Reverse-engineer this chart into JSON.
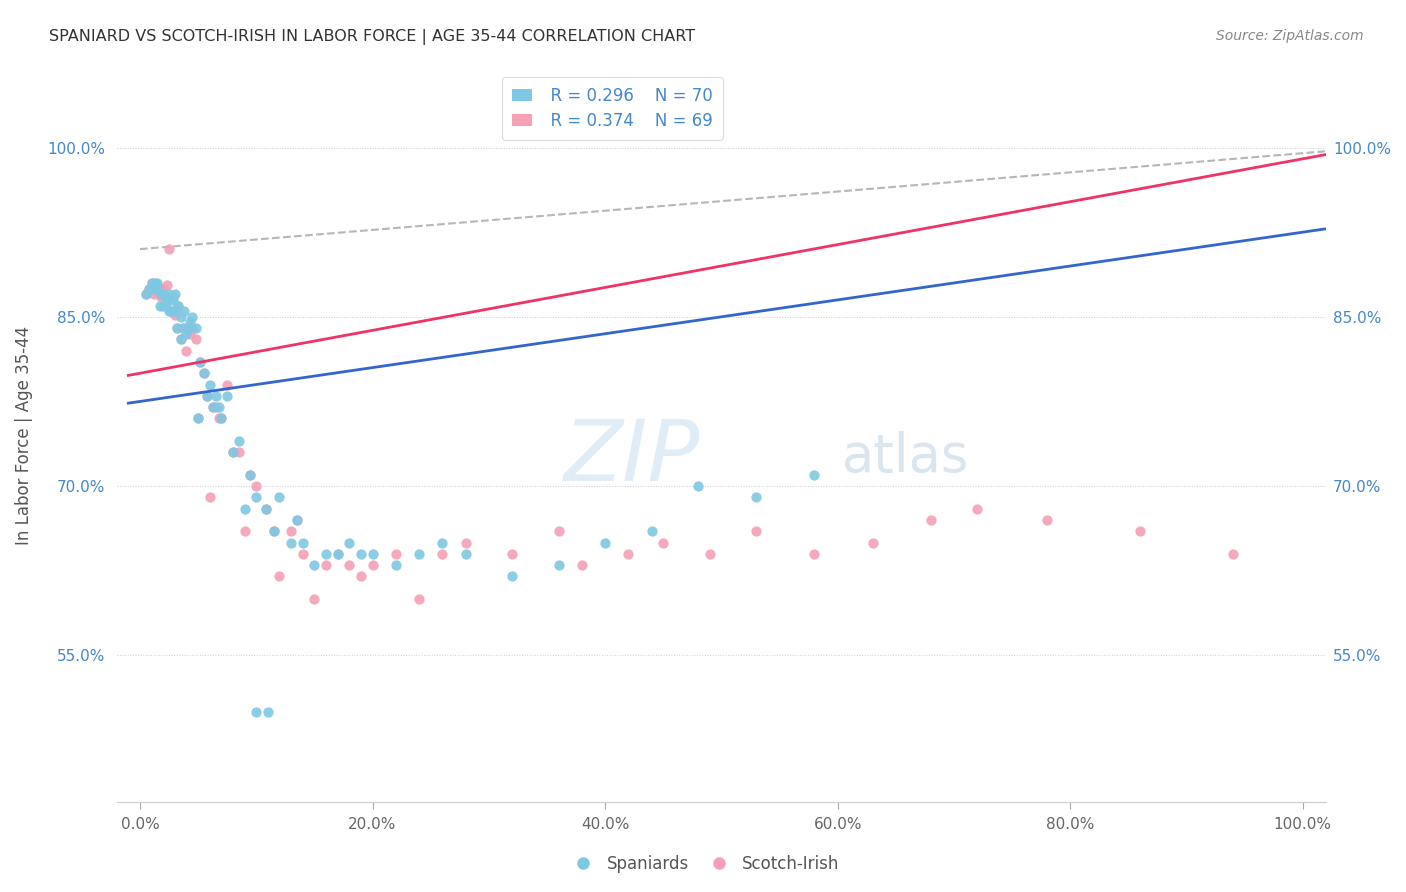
{
  "title": "SPANIARD VS SCOTCH-IRISH IN LABOR FORCE | AGE 35-44 CORRELATION CHART",
  "source": "Source: ZipAtlas.com",
  "ylabel": "In Labor Force | Age 35-44",
  "watermark": "ZIPatlas",
  "legend_blue_r": "R = 0.296",
  "legend_blue_n": "N = 70",
  "legend_pink_r": "R = 0.374",
  "legend_pink_n": "N = 69",
  "blue_color": "#7ec8e3",
  "pink_color": "#f4a0b5",
  "trend_blue": "#3366cc",
  "trend_pink": "#ee3366",
  "trend_dash_color": "#aaaaaa",
  "ytick_color": "#4488cc",
  "xtick_color": "#666666",
  "blue_x": [
    0.005,
    0.008,
    0.01,
    0.012,
    0.013,
    0.015,
    0.015,
    0.017,
    0.018,
    0.02,
    0.02,
    0.022,
    0.023,
    0.025,
    0.025,
    0.027,
    0.028,
    0.03,
    0.03,
    0.032,
    0.033,
    0.035,
    0.035,
    0.037,
    0.038,
    0.04,
    0.042,
    0.043,
    0.045,
    0.048,
    0.05,
    0.052,
    0.055,
    0.058,
    0.06,
    0.063,
    0.065,
    0.068,
    0.07,
    0.075,
    0.08,
    0.085,
    0.09,
    0.095,
    0.1,
    0.108,
    0.115,
    0.12,
    0.13,
    0.135,
    0.14,
    0.15,
    0.16,
    0.17,
    0.18,
    0.19,
    0.2,
    0.22,
    0.24,
    0.26,
    0.28,
    0.32,
    0.36,
    0.4,
    0.44,
    0.48,
    0.53,
    0.58,
    0.1,
    0.11
  ],
  "blue_y": [
    0.87,
    0.875,
    0.88,
    0.875,
    0.88,
    0.875,
    0.88,
    0.86,
    0.87,
    0.86,
    0.87,
    0.86,
    0.865,
    0.855,
    0.87,
    0.855,
    0.865,
    0.855,
    0.87,
    0.84,
    0.86,
    0.83,
    0.85,
    0.84,
    0.855,
    0.835,
    0.84,
    0.845,
    0.85,
    0.84,
    0.76,
    0.81,
    0.8,
    0.78,
    0.79,
    0.77,
    0.78,
    0.77,
    0.76,
    0.78,
    0.73,
    0.74,
    0.68,
    0.71,
    0.69,
    0.68,
    0.66,
    0.69,
    0.65,
    0.67,
    0.65,
    0.63,
    0.64,
    0.64,
    0.65,
    0.64,
    0.64,
    0.63,
    0.64,
    0.65,
    0.64,
    0.62,
    0.63,
    0.65,
    0.66,
    0.7,
    0.69,
    0.71,
    0.5,
    0.5
  ],
  "pink_x": [
    0.005,
    0.008,
    0.01,
    0.012,
    0.013,
    0.015,
    0.017,
    0.018,
    0.02,
    0.022,
    0.023,
    0.025,
    0.027,
    0.028,
    0.03,
    0.032,
    0.033,
    0.035,
    0.037,
    0.04,
    0.042,
    0.043,
    0.045,
    0.048,
    0.05,
    0.052,
    0.055,
    0.058,
    0.06,
    0.063,
    0.065,
    0.068,
    0.07,
    0.075,
    0.08,
    0.085,
    0.09,
    0.095,
    0.1,
    0.108,
    0.115,
    0.12,
    0.13,
    0.135,
    0.14,
    0.15,
    0.16,
    0.17,
    0.18,
    0.19,
    0.2,
    0.22,
    0.24,
    0.26,
    0.28,
    0.32,
    0.36,
    0.38,
    0.42,
    0.45,
    0.49,
    0.53,
    0.58,
    0.63,
    0.68,
    0.72,
    0.78,
    0.86,
    0.94
  ],
  "pink_y": [
    0.87,
    0.875,
    0.88,
    0.87,
    0.878,
    0.872,
    0.875,
    0.868,
    0.875,
    0.868,
    0.878,
    0.91,
    0.855,
    0.868,
    0.852,
    0.84,
    0.86,
    0.83,
    0.84,
    0.82,
    0.84,
    0.835,
    0.84,
    0.83,
    0.76,
    0.81,
    0.8,
    0.78,
    0.69,
    0.77,
    0.77,
    0.76,
    0.76,
    0.79,
    0.73,
    0.73,
    0.66,
    0.71,
    0.7,
    0.68,
    0.66,
    0.62,
    0.66,
    0.67,
    0.64,
    0.6,
    0.63,
    0.64,
    0.63,
    0.62,
    0.63,
    0.64,
    0.6,
    0.64,
    0.65,
    0.64,
    0.66,
    0.63,
    0.64,
    0.65,
    0.64,
    0.66,
    0.64,
    0.65,
    0.67,
    0.68,
    0.67,
    0.66,
    0.64
  ],
  "xticks": [
    0.0,
    0.2,
    0.4,
    0.6,
    0.8,
    1.0
  ],
  "xticklabels": [
    "0.0%",
    "20.0%",
    "40.0%",
    "60.0%",
    "80.0%",
    "100.0%"
  ],
  "yticks": [
    0.55,
    0.7,
    0.85,
    1.0
  ],
  "yticklabels": [
    "55.0%",
    "70.0%",
    "85.0%",
    "100.0%"
  ],
  "xlim": [
    -0.02,
    1.02
  ],
  "ylim": [
    0.42,
    1.07
  ]
}
